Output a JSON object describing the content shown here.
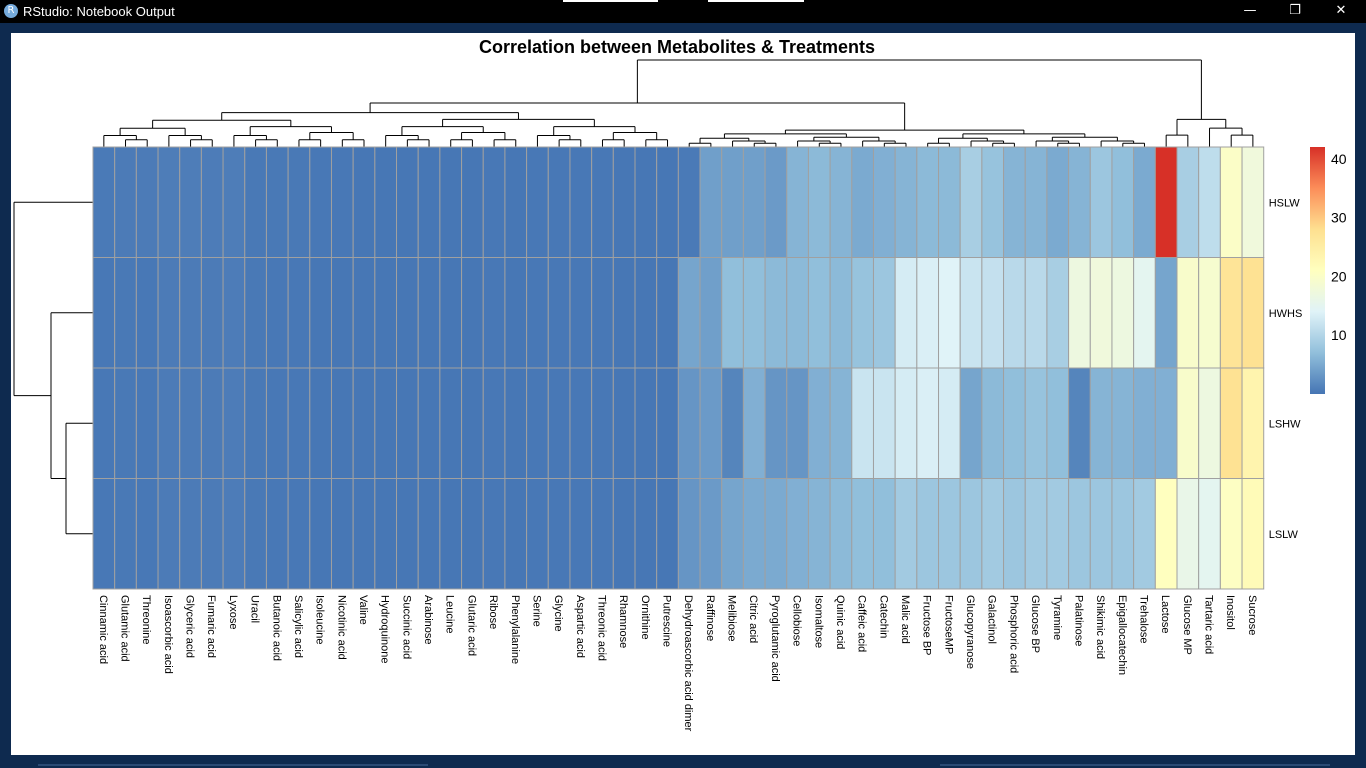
{
  "window": {
    "title": "RStudio: Notebook Output",
    "app_icon": "R",
    "minimize_label": "—",
    "maximize_label": "❐",
    "close_label": "✕"
  },
  "colors": {
    "scale": [
      "#4575b4",
      "#91bfdb",
      "#e0f3f8",
      "#ffffbf",
      "#fee090",
      "#fc8d59",
      "#d73027"
    ],
    "cell_border": "#a0a0a0",
    "dendrogram": "#000000"
  },
  "chart_data": {
    "type": "heatmap",
    "title": "Correlation between Metabolites & Treatments",
    "columns": [
      "Cinnamic acid",
      "Glutamic acid",
      "Threonine",
      "Isoascorbic acid",
      "Glyceric acid",
      "Fumaric acid",
      "Lyxose",
      "Uracil",
      "Butanoic acid",
      "Salicylic acid",
      "Isoleucine",
      "Nicotinic acid",
      "Valine",
      "Hydroquinone",
      "Succinic acid",
      "Arabinose",
      "Leucine",
      "Glutaric acid",
      "Ribose",
      "Phenylalanine",
      "Serine",
      "Glycine",
      "Aspartic acid",
      "Threonic acid",
      "Rhamnose",
      "Ornithine",
      "Putrescine",
      "Dehydroascorbic acid dimer",
      "Raffinose",
      "Melibiose",
      "Citric acid",
      "Pyroglutamic acid",
      "Cellobiose",
      "Isomaltose",
      "Quinic acid",
      "Caffeic acid",
      "Catechin",
      "Malic acid",
      "Fructose BP",
      "FructoseMP",
      "Glucopyranose",
      "Galactinol",
      "Phosphoric acid",
      "Glucose BP",
      "Tyramine",
      "Palatinose",
      "Shikimic acid",
      "Epigallocatechin",
      "Trehalose",
      "Lactose",
      "Glucose MP",
      "Tartaric acid",
      "Inositol",
      "Sucrose"
    ],
    "rows": [
      "HSLW",
      "HWHS",
      "LSHW",
      "LSLW"
    ],
    "values": [
      [
        0.5,
        0.6,
        0.6,
        0.8,
        0.8,
        0.7,
        0.8,
        0.4,
        0.4,
        0.4,
        0.3,
        0.3,
        0.2,
        0.2,
        0.2,
        0.2,
        0.2,
        0.2,
        0.3,
        0.2,
        0.3,
        0.3,
        0.3,
        0.3,
        0.2,
        0.2,
        0.2,
        0.5,
        4.0,
        4.0,
        4.0,
        3.5,
        6.0,
        6.5,
        6.0,
        5.0,
        5.5,
        6.0,
        6.5,
        6.5,
        9.0,
        7.5,
        6.0,
        6.0,
        5.0,
        6.0,
        8.0,
        7.0,
        5.0,
        42.0,
        9.0,
        11.0,
        20.0,
        17.5
      ],
      [
        0.3,
        0.4,
        0.3,
        0.6,
        0.6,
        0.6,
        0.7,
        0.4,
        0.3,
        0.3,
        0.2,
        0.2,
        0.2,
        0.2,
        0.2,
        0.2,
        0.2,
        0.2,
        0.3,
        0.2,
        0.3,
        0.3,
        0.3,
        0.3,
        0.2,
        0.2,
        0.2,
        4.5,
        4.0,
        7.0,
        7.0,
        6.5,
        6.5,
        7.0,
        6.5,
        7.5,
        8.0,
        13.0,
        13.5,
        14.0,
        12.0,
        11.5,
        10.5,
        10.5,
        9.0,
        17.0,
        17.5,
        17.0,
        15.0,
        4.5,
        19.5,
        19.0,
        27.0,
        27.5
      ],
      [
        0.3,
        0.4,
        0.3,
        0.6,
        0.6,
        0.6,
        0.7,
        0.4,
        0.3,
        0.3,
        0.2,
        0.2,
        0.2,
        0.2,
        0.2,
        0.2,
        0.2,
        0.2,
        0.3,
        0.2,
        0.3,
        0.3,
        0.3,
        0.3,
        0.2,
        0.2,
        0.2,
        3.0,
        3.5,
        1.5,
        5.5,
        3.0,
        3.0,
        5.5,
        6.0,
        12.0,
        12.0,
        13.0,
        13.5,
        13.0,
        4.5,
        6.5,
        7.0,
        7.5,
        7.0,
        1.5,
        6.0,
        6.0,
        5.5,
        5.5,
        19.5,
        17.0,
        27.5,
        23.5
      ],
      [
        0.3,
        0.4,
        0.3,
        0.6,
        0.6,
        0.6,
        0.7,
        0.4,
        0.3,
        0.3,
        0.2,
        0.2,
        0.2,
        0.2,
        0.2,
        0.2,
        0.2,
        0.2,
        0.3,
        0.2,
        0.3,
        0.3,
        0.3,
        0.3,
        0.2,
        0.2,
        0.2,
        3.0,
        3.5,
        4.5,
        5.0,
        5.0,
        5.5,
        6.0,
        6.5,
        7.0,
        7.0,
        8.5,
        8.0,
        8.0,
        8.0,
        8.5,
        8.0,
        8.5,
        8.5,
        8.0,
        8.0,
        8.0,
        8.5,
        21.0,
        16.0,
        15.0,
        20.5,
        22.0
      ]
    ],
    "colorbar": {
      "ticks": [
        10,
        20,
        30,
        40
      ],
      "range": [
        0,
        42
      ]
    },
    "legend_position": "right",
    "column_dendrogram": true,
    "row_dendrogram": true
  }
}
